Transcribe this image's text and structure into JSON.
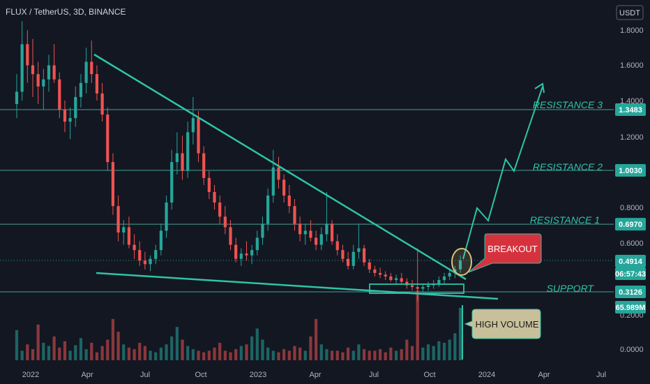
{
  "header": {
    "symbol_line": "FLUX / TetherUS, 3D, BINANCE",
    "currency": "USDT"
  },
  "colors": {
    "background": "#131722",
    "up": "#26a69a",
    "down": "#ef5350",
    "trendline": "#2ec4a6",
    "axis_text": "#b2b5be",
    "level_line": "#2ec4a6",
    "label_bg": "#26a69a",
    "breakout_callout": "#d6323e",
    "volume_callout": "#c8c09a"
  },
  "chart_data": {
    "type": "candlestick",
    "title": "FLUX / TetherUS, 3D, BINANCE",
    "y_axis_ticks": [
      "1.8000",
      "1.6000",
      "1.4000",
      "1.2000",
      "1.0000",
      "0.8000",
      "0.6000",
      "0.2000",
      "0.0000"
    ],
    "x_axis_ticks": [
      "2022",
      "Apr",
      "Jul",
      "Oct",
      "2023",
      "Apr",
      "Jul",
      "Oct",
      "2024",
      "Apr",
      "Jul"
    ],
    "price_levels": [
      {
        "value": 1.3483,
        "label": "1.3483"
      },
      {
        "value": 1.003,
        "label": "1.0030"
      },
      {
        "value": 0.697,
        "label": "0.6970"
      },
      {
        "value": 0.3126,
        "label": "0.3126"
      }
    ],
    "current_price": {
      "value": 0.4914,
      "label": "0.4914",
      "countdown": "06:57:43"
    },
    "volume_label": "65.989M",
    "annotations": [
      {
        "text": "RESISTANCE 3"
      },
      {
        "text": "RESISTANCE 2"
      },
      {
        "text": "RESISTANCE 1"
      },
      {
        "text": "SUPPORT"
      },
      {
        "text": "BREAKOUT"
      },
      {
        "text": "HIGH VOLUME"
      }
    ],
    "price_series": [
      [
        1.38,
        1.55,
        1.3,
        1.45
      ],
      [
        1.45,
        1.85,
        1.4,
        1.72
      ],
      [
        1.72,
        1.8,
        1.5,
        1.6
      ],
      [
        1.6,
        1.75,
        1.42,
        1.55
      ],
      [
        1.55,
        1.62,
        1.38,
        1.48
      ],
      [
        1.48,
        1.58,
        1.35,
        1.52
      ],
      [
        1.52,
        1.66,
        1.45,
        1.6
      ],
      [
        1.6,
        1.72,
        1.5,
        1.52
      ],
      [
        1.52,
        1.56,
        1.3,
        1.35
      ],
      [
        1.35,
        1.4,
        1.22,
        1.28
      ],
      [
        1.28,
        1.36,
        1.18,
        1.3
      ],
      [
        1.3,
        1.48,
        1.25,
        1.42
      ],
      [
        1.42,
        1.55,
        1.36,
        1.5
      ],
      [
        1.5,
        1.7,
        1.44,
        1.62
      ],
      [
        1.62,
        1.74,
        1.5,
        1.55
      ],
      [
        1.55,
        1.6,
        1.4,
        1.44
      ],
      [
        1.44,
        1.5,
        1.28,
        1.32
      ],
      [
        1.32,
        1.36,
        1.0,
        1.05
      ],
      [
        1.05,
        1.1,
        0.75,
        0.8
      ],
      [
        0.8,
        0.86,
        0.6,
        0.65
      ],
      [
        0.65,
        0.72,
        0.58,
        0.68
      ],
      [
        0.68,
        0.74,
        0.56,
        0.58
      ],
      [
        0.58,
        0.64,
        0.5,
        0.55
      ],
      [
        0.55,
        0.6,
        0.46,
        0.49
      ],
      [
        0.49,
        0.54,
        0.44,
        0.47
      ],
      [
        0.47,
        0.52,
        0.43,
        0.5
      ],
      [
        0.5,
        0.58,
        0.47,
        0.55
      ],
      [
        0.55,
        0.7,
        0.52,
        0.66
      ],
      [
        0.66,
        0.86,
        0.62,
        0.82
      ],
      [
        0.82,
        1.12,
        0.78,
        1.05
      ],
      [
        1.05,
        1.22,
        0.98,
        1.1
      ],
      [
        1.1,
        1.2,
        0.95,
        1.0
      ],
      [
        1.0,
        1.28,
        0.96,
        1.22
      ],
      [
        1.22,
        1.42,
        1.15,
        1.3
      ],
      [
        1.3,
        1.34,
        1.05,
        1.1
      ],
      [
        1.1,
        1.14,
        0.92,
        0.96
      ],
      [
        0.96,
        1.0,
        0.84,
        0.88
      ],
      [
        0.88,
        0.92,
        0.78,
        0.82
      ],
      [
        0.82,
        0.86,
        0.7,
        0.74
      ],
      [
        0.74,
        0.8,
        0.64,
        0.68
      ],
      [
        0.68,
        0.72,
        0.55,
        0.58
      ],
      [
        0.58,
        0.62,
        0.48,
        0.5
      ],
      [
        0.5,
        0.56,
        0.46,
        0.53
      ],
      [
        0.53,
        0.6,
        0.49,
        0.52
      ],
      [
        0.52,
        0.58,
        0.47,
        0.55
      ],
      [
        0.55,
        0.66,
        0.52,
        0.62
      ],
      [
        0.62,
        0.74,
        0.58,
        0.7
      ],
      [
        0.7,
        0.9,
        0.66,
        0.86
      ],
      [
        0.86,
        1.12,
        0.82,
        1.02
      ],
      [
        1.02,
        1.08,
        0.9,
        0.95
      ],
      [
        0.95,
        0.98,
        0.82,
        0.86
      ],
      [
        0.86,
        0.92,
        0.76,
        0.8
      ],
      [
        0.8,
        0.84,
        0.66,
        0.7
      ],
      [
        0.7,
        0.74,
        0.6,
        0.64
      ],
      [
        0.64,
        0.7,
        0.58,
        0.66
      ],
      [
        0.66,
        0.72,
        0.6,
        0.62
      ],
      [
        0.62,
        0.66,
        0.55,
        0.58
      ],
      [
        0.58,
        0.68,
        0.55,
        0.64
      ],
      [
        0.64,
        0.88,
        0.6,
        0.7
      ],
      [
        0.7,
        0.72,
        0.58,
        0.6
      ],
      [
        0.6,
        0.64,
        0.52,
        0.55
      ],
      [
        0.55,
        0.58,
        0.48,
        0.5
      ],
      [
        0.5,
        0.54,
        0.44,
        0.46
      ],
      [
        0.46,
        0.58,
        0.44,
        0.54
      ],
      [
        0.54,
        0.7,
        0.5,
        0.56
      ],
      [
        0.56,
        0.58,
        0.46,
        0.48
      ],
      [
        0.48,
        0.5,
        0.42,
        0.44
      ],
      [
        0.44,
        0.46,
        0.4,
        0.42
      ],
      [
        0.42,
        0.45,
        0.39,
        0.41
      ],
      [
        0.41,
        0.43,
        0.38,
        0.4
      ],
      [
        0.4,
        0.42,
        0.37,
        0.38
      ],
      [
        0.38,
        0.41,
        0.36,
        0.39
      ],
      [
        0.39,
        0.42,
        0.36,
        0.37
      ],
      [
        0.37,
        0.39,
        0.33,
        0.35
      ],
      [
        0.35,
        0.38,
        0.32,
        0.34
      ],
      [
        0.34,
        0.56,
        0.26,
        0.33
      ],
      [
        0.33,
        0.36,
        0.31,
        0.34
      ],
      [
        0.34,
        0.37,
        0.32,
        0.35
      ],
      [
        0.35,
        0.38,
        0.33,
        0.36
      ],
      [
        0.36,
        0.4,
        0.34,
        0.38
      ],
      [
        0.38,
        0.42,
        0.36,
        0.4
      ],
      [
        0.4,
        0.44,
        0.38,
        0.42
      ],
      [
        0.42,
        0.46,
        0.39,
        0.44
      ],
      [
        0.44,
        0.52,
        0.42,
        0.4914
      ]
    ],
    "volume_series": [
      38,
      12,
      20,
      14,
      45,
      22,
      18,
      30,
      16,
      24,
      12,
      19,
      28,
      14,
      22,
      10,
      18,
      26,
      52,
      36,
      20,
      16,
      14,
      22,
      18,
      12,
      10,
      16,
      20,
      30,
      42,
      26,
      18,
      14,
      12,
      10,
      12,
      16,
      22,
      12,
      10,
      14,
      18,
      20,
      30,
      40,
      26,
      16,
      12,
      10,
      14,
      12,
      18,
      16,
      12,
      30,
      52,
      20,
      14,
      12,
      12,
      10,
      16,
      12,
      20,
      14,
      12,
      12,
      14,
      10,
      16,
      12,
      14,
      26,
      18,
      88,
      16,
      20,
      18,
      24,
      22,
      26,
      34,
      66
    ]
  }
}
